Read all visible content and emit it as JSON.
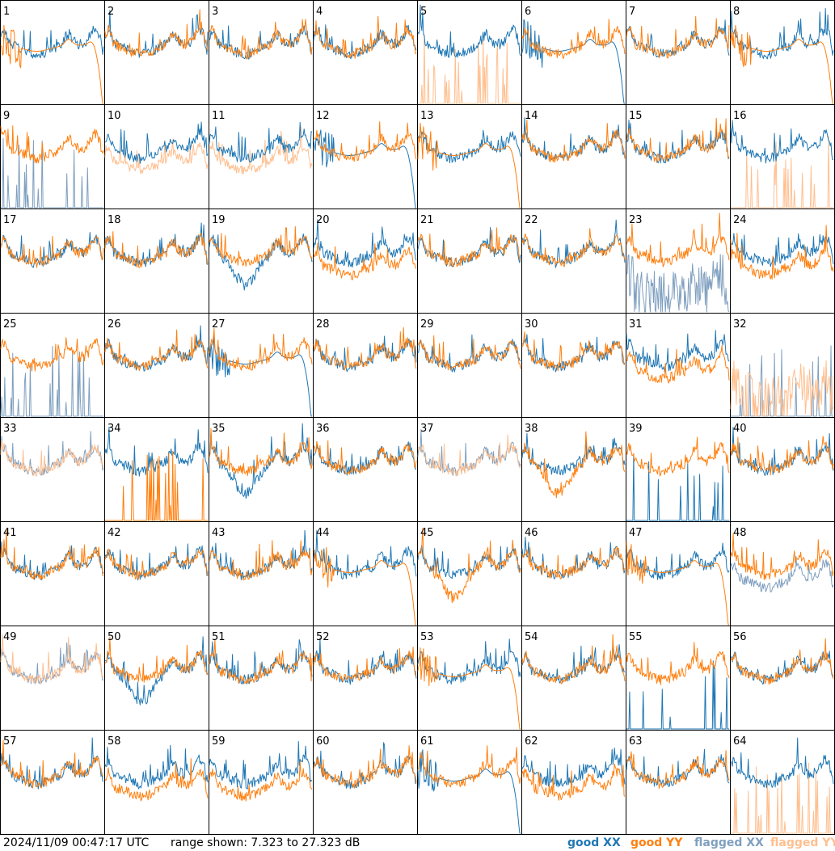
{
  "chart_data": {
    "type": "line",
    "panel_rows": 8,
    "panel_cols": 8,
    "panels": [
      {
        "label": "1",
        "xx": {
          "status": "good",
          "profile": "normal"
        },
        "yy": {
          "status": "good",
          "profile": "dropoff"
        }
      },
      {
        "label": "2",
        "xx": {
          "status": "good",
          "profile": "normal"
        },
        "yy": {
          "status": "good",
          "profile": "normal"
        }
      },
      {
        "label": "3",
        "xx": {
          "status": "good",
          "profile": "normal"
        },
        "yy": {
          "status": "good",
          "profile": "normal"
        }
      },
      {
        "label": "4",
        "xx": {
          "status": "good",
          "profile": "normal"
        },
        "yy": {
          "status": "good",
          "profile": "normal"
        }
      },
      {
        "label": "5",
        "xx": {
          "status": "good",
          "profile": "normal"
        },
        "yy": {
          "status": "flagged",
          "profile": "spikes"
        }
      },
      {
        "label": "6",
        "xx": {
          "status": "good",
          "profile": "dropoff"
        },
        "yy": {
          "status": "good",
          "profile": "normal"
        }
      },
      {
        "label": "7",
        "xx": {
          "status": "good",
          "profile": "normal"
        },
        "yy": {
          "status": "good",
          "profile": "normal"
        }
      },
      {
        "label": "8",
        "xx": {
          "status": "good",
          "profile": "normal"
        },
        "yy": {
          "status": "good",
          "profile": "dropoff"
        }
      },
      {
        "label": "9",
        "xx": {
          "status": "flagged",
          "profile": "spikes"
        },
        "yy": {
          "status": "good",
          "profile": "normal"
        }
      },
      {
        "label": "10",
        "xx": {
          "status": "good",
          "profile": "normal"
        },
        "yy": {
          "status": "flagged",
          "profile": "low"
        }
      },
      {
        "label": "11",
        "xx": {
          "status": "good",
          "profile": "normal"
        },
        "yy": {
          "status": "flagged",
          "profile": "low"
        }
      },
      {
        "label": "12",
        "xx": {
          "status": "good",
          "profile": "dropoff"
        },
        "yy": {
          "status": "good",
          "profile": "normal"
        }
      },
      {
        "label": "13",
        "xx": {
          "status": "good",
          "profile": "normal"
        },
        "yy": {
          "status": "good",
          "profile": "dropoff"
        }
      },
      {
        "label": "14",
        "xx": {
          "status": "good",
          "profile": "normal"
        },
        "yy": {
          "status": "good",
          "profile": "normal"
        }
      },
      {
        "label": "15",
        "xx": {
          "status": "good",
          "profile": "normal"
        },
        "yy": {
          "status": "good",
          "profile": "normal"
        }
      },
      {
        "label": "16",
        "xx": {
          "status": "good",
          "profile": "normal"
        },
        "yy": {
          "status": "flagged",
          "profile": "spikes"
        }
      },
      {
        "label": "17",
        "xx": {
          "status": "good",
          "profile": "normal"
        },
        "yy": {
          "status": "good",
          "profile": "normal"
        }
      },
      {
        "label": "18",
        "xx": {
          "status": "good",
          "profile": "normal"
        },
        "yy": {
          "status": "good",
          "profile": "normal"
        }
      },
      {
        "label": "19",
        "xx": {
          "status": "good",
          "profile": "dip"
        },
        "yy": {
          "status": "good",
          "profile": "normal"
        }
      },
      {
        "label": "20",
        "xx": {
          "status": "good",
          "profile": "normal"
        },
        "yy": {
          "status": "good",
          "profile": "low"
        }
      },
      {
        "label": "21",
        "xx": {
          "status": "good",
          "profile": "normal"
        },
        "yy": {
          "status": "good",
          "profile": "normal"
        }
      },
      {
        "label": "22",
        "xx": {
          "status": "good",
          "profile": "normal"
        },
        "yy": {
          "status": "good",
          "profile": "normal"
        }
      },
      {
        "label": "23",
        "xx": {
          "status": "flagged",
          "profile": "noisy"
        },
        "yy": {
          "status": "good",
          "profile": "normal"
        }
      },
      {
        "label": "24",
        "xx": {
          "status": "good",
          "profile": "normal"
        },
        "yy": {
          "status": "good",
          "profile": "low"
        }
      },
      {
        "label": "25",
        "xx": {
          "status": "flagged",
          "profile": "spikes"
        },
        "yy": {
          "status": "good",
          "profile": "normal"
        }
      },
      {
        "label": "26",
        "xx": {
          "status": "good",
          "profile": "normal"
        },
        "yy": {
          "status": "good",
          "profile": "normal"
        }
      },
      {
        "label": "27",
        "xx": {
          "status": "good",
          "profile": "dropoff"
        },
        "yy": {
          "status": "good",
          "profile": "normal"
        }
      },
      {
        "label": "28",
        "xx": {
          "status": "good",
          "profile": "normal"
        },
        "yy": {
          "status": "good",
          "profile": "normal"
        }
      },
      {
        "label": "29",
        "xx": {
          "status": "good",
          "profile": "normal"
        },
        "yy": {
          "status": "good",
          "profile": "normal"
        }
      },
      {
        "label": "30",
        "xx": {
          "status": "good",
          "profile": "normal"
        },
        "yy": {
          "status": "good",
          "profile": "normal"
        }
      },
      {
        "label": "31",
        "xx": {
          "status": "good",
          "profile": "normal"
        },
        "yy": {
          "status": "good",
          "profile": "low"
        }
      },
      {
        "label": "32",
        "xx": {
          "status": "flagged",
          "profile": "spikes"
        },
        "yy": {
          "status": "flagged",
          "profile": "noisy"
        }
      },
      {
        "label": "33",
        "xx": {
          "status": "flagged",
          "profile": "normal"
        },
        "yy": {
          "status": "flagged",
          "profile": "normal"
        }
      },
      {
        "label": "34",
        "xx": {
          "status": "good",
          "profile": "normal"
        },
        "yy": {
          "status": "good",
          "profile": "spikes"
        }
      },
      {
        "label": "35",
        "xx": {
          "status": "good",
          "profile": "dip"
        },
        "yy": {
          "status": "good",
          "profile": "normal"
        }
      },
      {
        "label": "36",
        "xx": {
          "status": "good",
          "profile": "normal"
        },
        "yy": {
          "status": "good",
          "profile": "normal"
        }
      },
      {
        "label": "37",
        "xx": {
          "status": "flagged",
          "profile": "normal"
        },
        "yy": {
          "status": "flagged",
          "profile": "normal"
        }
      },
      {
        "label": "38",
        "xx": {
          "status": "good",
          "profile": "normal"
        },
        "yy": {
          "status": "good",
          "profile": "dip"
        }
      },
      {
        "label": "39",
        "xx": {
          "status": "good",
          "profile": "spikes"
        },
        "yy": {
          "status": "good",
          "profile": "normal"
        }
      },
      {
        "label": "40",
        "xx": {
          "status": "good",
          "profile": "normal"
        },
        "yy": {
          "status": "good",
          "profile": "normal"
        }
      },
      {
        "label": "41",
        "xx": {
          "status": "good",
          "profile": "normal"
        },
        "yy": {
          "status": "good",
          "profile": "normal"
        }
      },
      {
        "label": "42",
        "xx": {
          "status": "good",
          "profile": "normal"
        },
        "yy": {
          "status": "good",
          "profile": "normal"
        }
      },
      {
        "label": "43",
        "xx": {
          "status": "good",
          "profile": "normal"
        },
        "yy": {
          "status": "good",
          "profile": "normal"
        }
      },
      {
        "label": "44",
        "xx": {
          "status": "good",
          "profile": "normal"
        },
        "yy": {
          "status": "good",
          "profile": "dropoff"
        }
      },
      {
        "label": "45",
        "xx": {
          "status": "good",
          "profile": "normal"
        },
        "yy": {
          "status": "good",
          "profile": "dip"
        }
      },
      {
        "label": "46",
        "xx": {
          "status": "good",
          "profile": "normal"
        },
        "yy": {
          "status": "good",
          "profile": "normal"
        }
      },
      {
        "label": "47",
        "xx": {
          "status": "good",
          "profile": "normal"
        },
        "yy": {
          "status": "good",
          "profile": "dropoff"
        }
      },
      {
        "label": "48",
        "xx": {
          "status": "flagged",
          "profile": "low"
        },
        "yy": {
          "status": "good",
          "profile": "normal"
        }
      },
      {
        "label": "49",
        "xx": {
          "status": "flagged",
          "profile": "normal"
        },
        "yy": {
          "status": "flagged",
          "profile": "normal"
        }
      },
      {
        "label": "50",
        "xx": {
          "status": "good",
          "profile": "dip"
        },
        "yy": {
          "status": "good",
          "profile": "normal"
        }
      },
      {
        "label": "51",
        "xx": {
          "status": "good",
          "profile": "normal"
        },
        "yy": {
          "status": "good",
          "profile": "normal"
        }
      },
      {
        "label": "52",
        "xx": {
          "status": "good",
          "profile": "normal"
        },
        "yy": {
          "status": "good",
          "profile": "normal"
        }
      },
      {
        "label": "53",
        "xx": {
          "status": "good",
          "profile": "normal"
        },
        "yy": {
          "status": "good",
          "profile": "dropoff"
        }
      },
      {
        "label": "54",
        "xx": {
          "status": "good",
          "profile": "normal"
        },
        "yy": {
          "status": "good",
          "profile": "normal"
        }
      },
      {
        "label": "55",
        "xx": {
          "status": "good",
          "profile": "spikes"
        },
        "yy": {
          "status": "good",
          "profile": "normal"
        }
      },
      {
        "label": "56",
        "xx": {
          "status": "good",
          "profile": "normal"
        },
        "yy": {
          "status": "good",
          "profile": "normal"
        }
      },
      {
        "label": "57",
        "xx": {
          "status": "good",
          "profile": "normal"
        },
        "yy": {
          "status": "good",
          "profile": "normal"
        }
      },
      {
        "label": "58",
        "xx": {
          "status": "good",
          "profile": "normal"
        },
        "yy": {
          "status": "good",
          "profile": "low"
        }
      },
      {
        "label": "59",
        "xx": {
          "status": "good",
          "profile": "normal"
        },
        "yy": {
          "status": "good",
          "profile": "low"
        }
      },
      {
        "label": "60",
        "xx": {
          "status": "good",
          "profile": "normal"
        },
        "yy": {
          "status": "good",
          "profile": "normal"
        }
      },
      {
        "label": "61",
        "xx": {
          "status": "good",
          "profile": "dropoff"
        },
        "yy": {
          "status": "good",
          "profile": "normal"
        }
      },
      {
        "label": "62",
        "xx": {
          "status": "good",
          "profile": "normal"
        },
        "yy": {
          "status": "good",
          "profile": "low"
        }
      },
      {
        "label": "63",
        "xx": {
          "status": "good",
          "profile": "normal"
        },
        "yy": {
          "status": "good",
          "profile": "normal"
        }
      },
      {
        "label": "64",
        "xx": {
          "status": "good",
          "profile": "normal"
        },
        "yy": {
          "status": "flagged",
          "profile": "spikes"
        }
      }
    ]
  },
  "footer": {
    "timestamp": "2024/11/09 00:47:17 UTC",
    "range": "range shown: 7.323 to 27.323 dB"
  },
  "legend": {
    "good_xx": "good XX",
    "good_yy": "good YY",
    "flagged_xx": "flagged XX",
    "flagged_yy": "flagged YY"
  },
  "colors": {
    "good_xx": "#1f77b4",
    "good_yy": "#ff7f0e",
    "flagged_xx": "#7f9fbf",
    "flagged_yy": "#ffbf8f"
  }
}
